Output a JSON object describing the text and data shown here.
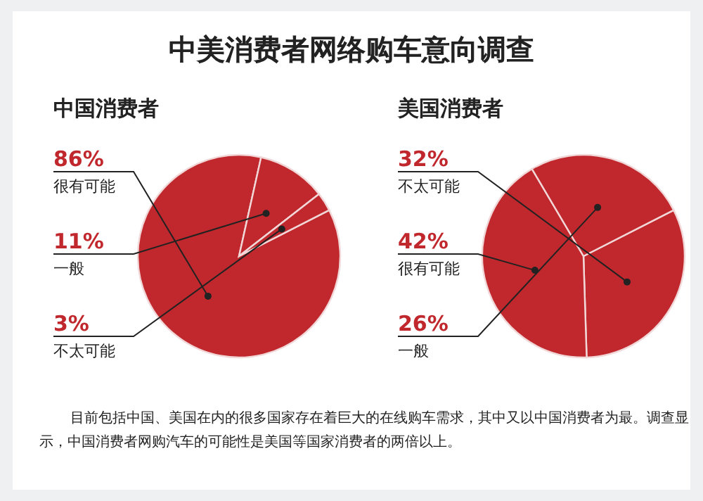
{
  "chart_data": [
    {
      "type": "pie",
      "title": "中美消费者网络购车意向调查",
      "subtitle": "中国消费者",
      "categories": [
        "很有可能",
        "一般",
        "不太可能"
      ],
      "values": [
        86,
        11,
        3
      ],
      "value_labels": [
        "86%",
        "11%",
        "3%"
      ],
      "colors": [
        "#c0282d",
        "#c0282d",
        "#c0282d"
      ]
    },
    {
      "type": "pie",
      "subtitle": "美国消费者",
      "categories": [
        "不太可能",
        "很有可能",
        "一般"
      ],
      "values": [
        32,
        42,
        26
      ],
      "value_labels": [
        "32%",
        "42%",
        "26%"
      ],
      "colors": [
        "#c0282d",
        "#c0282d",
        "#c0282d"
      ],
      "annotations": [
        "目前包括中国、美国在内的很多国家存在着巨大的在线购车需求，其中又以中国消费者为最。调查显示，中国消费者网购汽车的可能性是美国等国家消费者的两倍以上。"
      ]
    }
  ]
}
